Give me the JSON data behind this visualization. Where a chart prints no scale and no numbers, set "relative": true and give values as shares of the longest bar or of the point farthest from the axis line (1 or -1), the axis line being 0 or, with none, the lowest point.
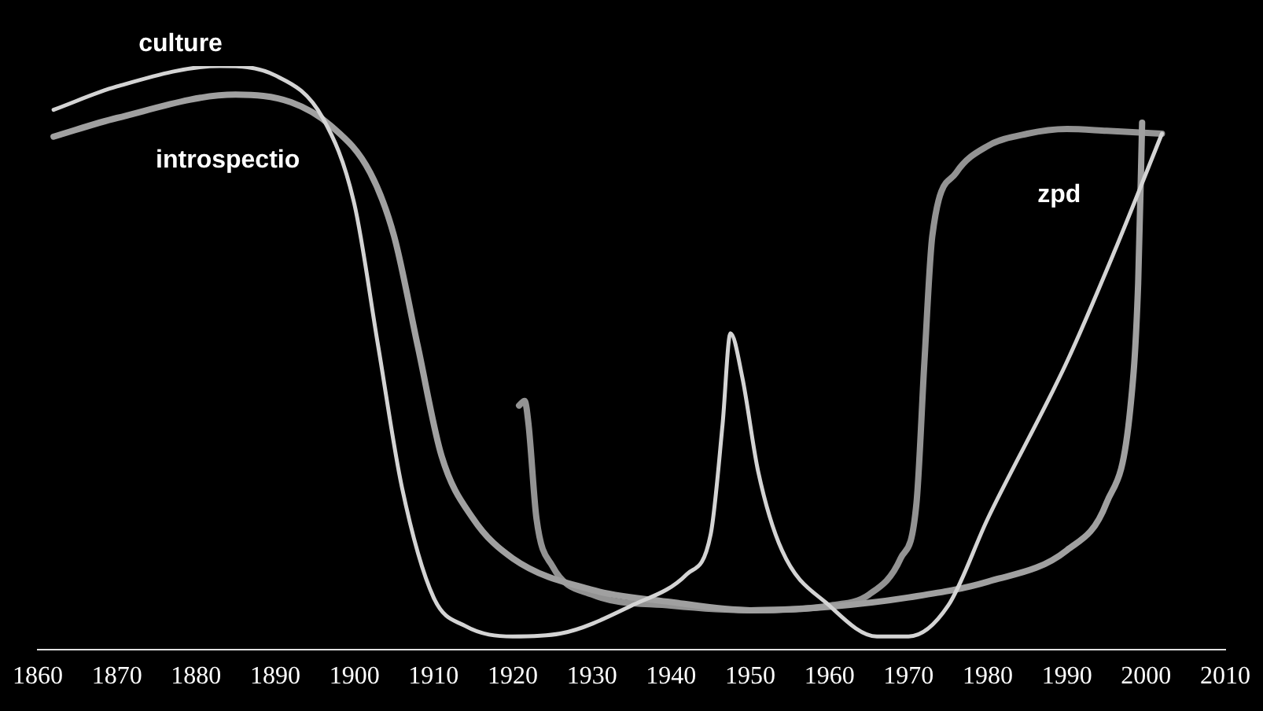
{
  "chart_data": {
    "type": "line",
    "relative": true,
    "xlim": [
      1860,
      2010
    ],
    "xticks": [
      1860,
      1870,
      1880,
      1890,
      1900,
      1910,
      1920,
      1930,
      1940,
      1950,
      1960,
      1970,
      1980,
      1990,
      2000,
      2010
    ],
    "grid": false,
    "legend": false,
    "marker": "none",
    "tick_labels": "x",
    "series": [
      {
        "name": "culture",
        "color": "#d4d4d4",
        "x": [
          1862,
          1870,
          1883,
          1890,
          1896,
          1900,
          1903,
          1906,
          1910,
          1914,
          1920,
          1926,
          1935,
          1942,
          1945,
          1946.5,
          1947.5,
          1949,
          1951,
          1954,
          1960,
          1966,
          1970,
          1975,
          1980,
          1990,
          1996,
          2002
        ],
        "values": [
          0.925,
          0.965,
          1,
          0.984,
          0.911,
          0.763,
          0.52,
          0.278,
          0.089,
          0.04,
          0.022,
          0.027,
          0.075,
          0.129,
          0.197,
          0.385,
          0.542,
          0.466,
          0.305,
          0.17,
          0.075,
          0.022,
          0.022,
          0.075,
          0.224,
          0.493,
          0.682,
          0.884
        ]
      },
      {
        "name": "introspectio",
        "color": "#a0a0a0",
        "x": [
          1862,
          1870,
          1885,
          1892,
          1897,
          1902,
          1905,
          1908,
          1911,
          1915,
          1920,
          1930,
          1940,
          1950,
          1960,
          1970,
          1980,
          1990,
          1995,
          1998,
          1999,
          1999.5
        ],
        "values": [
          0.879,
          0.911,
          0.951,
          0.938,
          0.898,
          0.817,
          0.709,
          0.52,
          0.332,
          0.224,
          0.156,
          0.102,
          0.081,
          0.067,
          0.073,
          0.089,
          0.116,
          0.17,
          0.251,
          0.412,
          0.628,
          0.903
        ]
      },
      {
        "name": "zpd",
        "color": "#939393",
        "x": [
          1920.8,
          1921.5,
          1922,
          1923,
          1925,
          1930,
          1940,
          1950,
          1960,
          1965,
          1969,
          1971,
          1972,
          1973,
          1976,
          1980,
          1985,
          1990,
          1995,
          2002
        ],
        "values": [
          0.418,
          0.426,
          0.385,
          0.224,
          0.143,
          0.094,
          0.075,
          0.067,
          0.075,
          0.094,
          0.156,
          0.251,
          0.493,
          0.709,
          0.817,
          0.863,
          0.884,
          0.892,
          0.889,
          0.884
        ]
      }
    ]
  }
}
